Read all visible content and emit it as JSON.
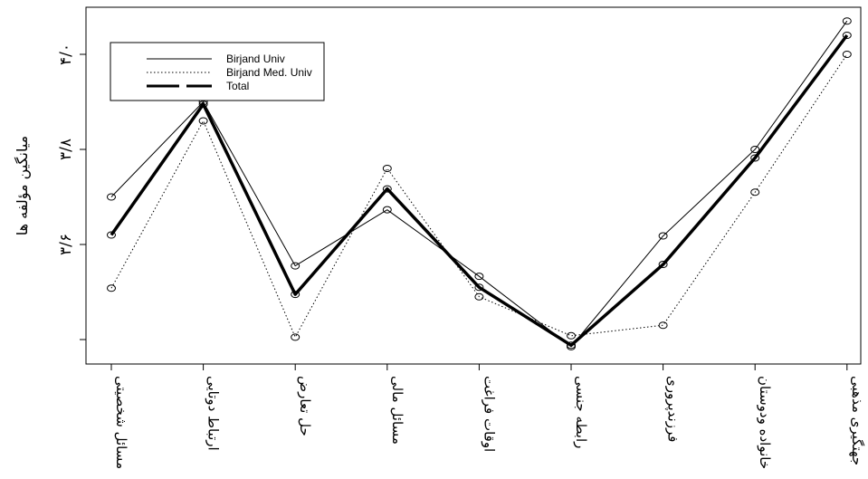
{
  "chart_data": {
    "type": "line",
    "xlabel": "",
    "ylabel": "میانگین مؤلفه ها",
    "categories": [
      "مسائل شخصیتی",
      "ارتباط دوتایی",
      "حل تعارض",
      "مسائل مالی",
      "اوقات فراغت",
      "رابطه جنسی",
      "فرزندپروری",
      "خانواده ودوستان",
      "جهتگیری مذهبی"
    ],
    "yticks": [
      {
        "value": 3.6,
        "label": "۳/۶"
      },
      {
        "value": 3.8,
        "label": "۳/۸"
      },
      {
        "value": 4.0,
        "label": "۴/۰"
      }
    ],
    "ylim": [
      3.4,
      4.1
    ],
    "series": [
      {
        "name": "Birjand Univ",
        "style": "thin-solid",
        "values": [
          3.7,
          3.9,
          3.555,
          3.673,
          3.533,
          3.385,
          3.618,
          3.8,
          4.07
        ]
      },
      {
        "name": "Birjand Med. Univ",
        "style": "dotted",
        "values": [
          3.508,
          3.86,
          3.405,
          3.76,
          3.49,
          3.408,
          3.43,
          3.71,
          4.0
        ]
      },
      {
        "name": "Total",
        "style": "thick-solid",
        "values": [
          3.62,
          3.895,
          3.495,
          3.717,
          3.51,
          3.388,
          3.558,
          3.782,
          4.04
        ]
      }
    ],
    "legend_position": "top-left",
    "grid": false
  }
}
